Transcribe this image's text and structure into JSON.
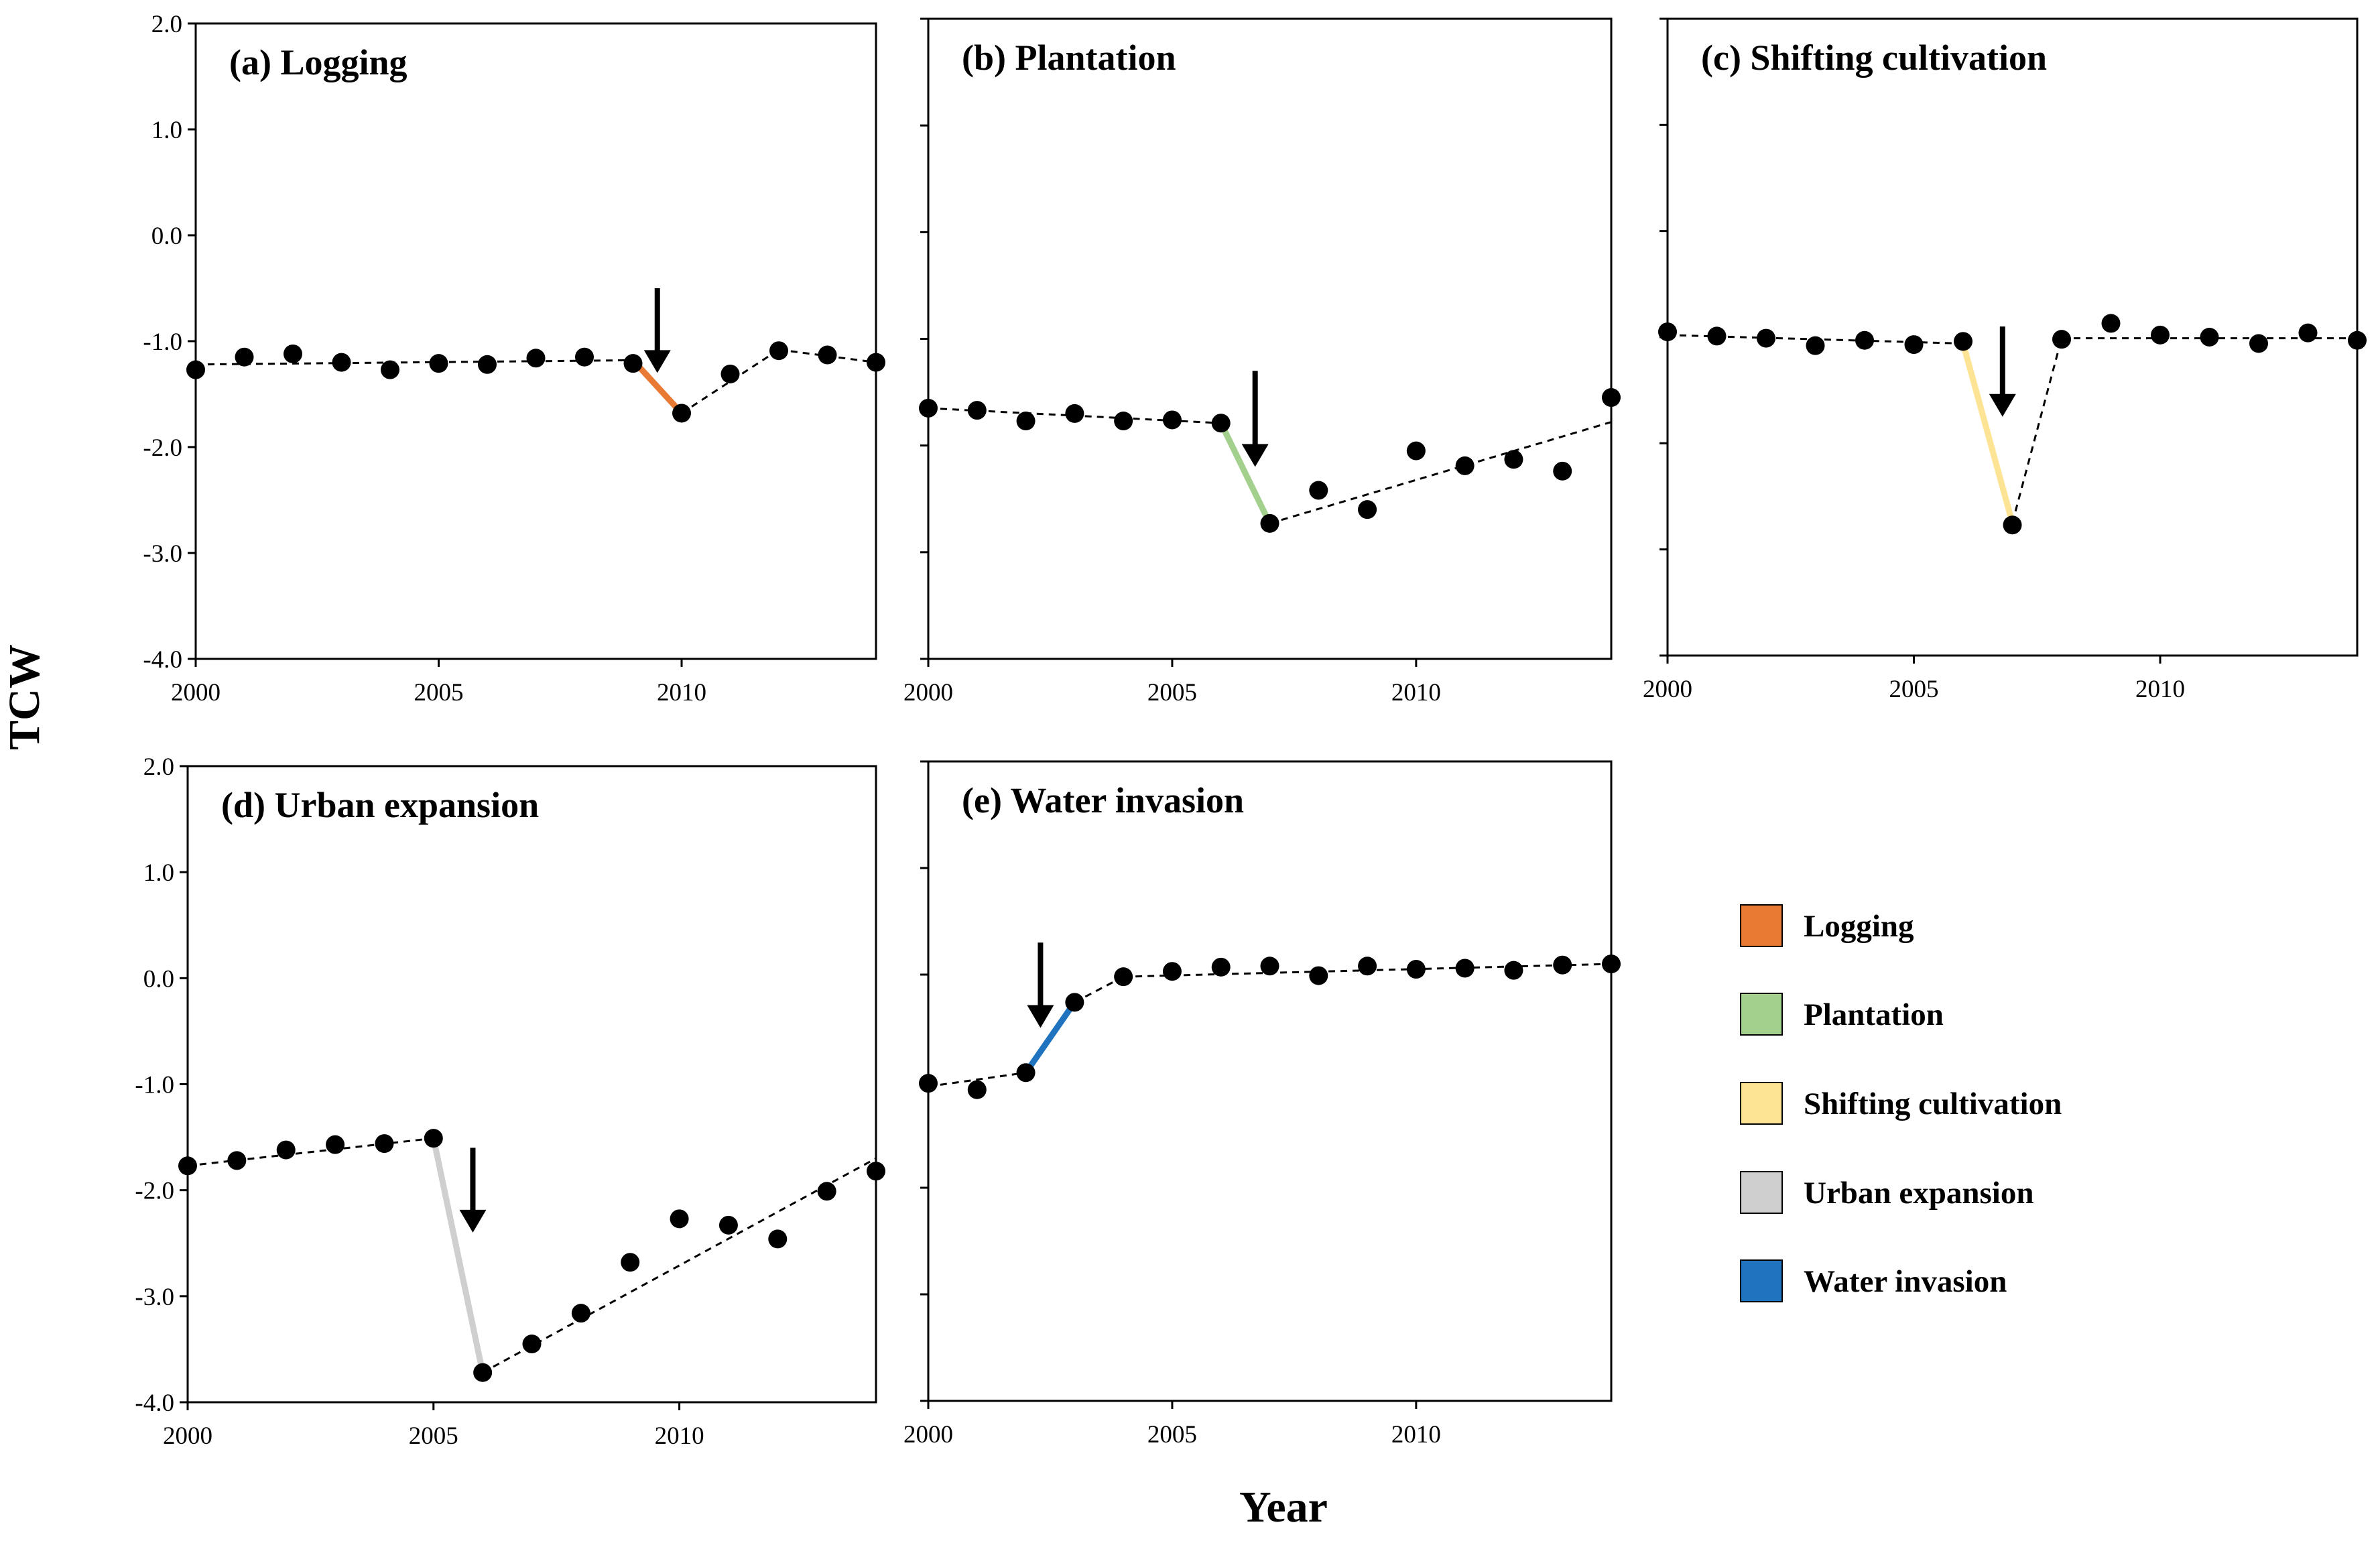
{
  "figure": {
    "ylabel": "TCW",
    "xlabel": "Year"
  },
  "legend": [
    {
      "label": "Logging",
      "color": "#e87a33"
    },
    {
      "label": "Plantation",
      "color": "#a3d08d"
    },
    {
      "label": "Shifting cultivation",
      "color": "#fde494"
    },
    {
      "label": "Urban expansion",
      "color": "#cfcfcf"
    },
    {
      "label": "Water invasion",
      "color": "#1f73bf"
    }
  ],
  "chart_data": [
    {
      "type": "scatter",
      "title": "(a) Logging",
      "xlim": [
        2000,
        2014
      ],
      "ylim": [
        -4.0,
        2.0
      ],
      "xticks": [
        "2000",
        "2005",
        "2010"
      ],
      "yticks": [
        "2.0",
        "1.0",
        "0.0",
        "-1.0",
        "-2.0",
        "-3.0",
        "-4.0"
      ],
      "show_ytick_labels": true,
      "x": [
        2000,
        2001,
        2002,
        2003,
        2004,
        2005,
        2006,
        2007,
        2008,
        2009,
        2010,
        2011,
        2012,
        2013,
        2014
      ],
      "y": [
        -1.27,
        -1.15,
        -1.12,
        -1.2,
        -1.27,
        -1.21,
        -1.22,
        -1.16,
        -1.15,
        -1.21,
        -1.68,
        -1.31,
        -1.09,
        -1.13,
        -1.2
      ],
      "fit": [
        [
          2000,
          -1.22
        ],
        [
          2009,
          -1.18
        ],
        [
          2010,
          -1.68
        ],
        [
          2012,
          -1.08
        ],
        [
          2014,
          -1.2
        ]
      ],
      "disturbance": {
        "type": "Logging",
        "color": "#e87a33",
        "from": [
          2009,
          -1.18
        ],
        "to": [
          2010,
          -1.68
        ]
      },
      "arrow": {
        "x": 2009.5,
        "y_from": -0.5,
        "y_to": -1.3
      }
    },
    {
      "type": "scatter",
      "title": "(b) Plantation",
      "xlim": [
        2000,
        2014
      ],
      "ylim": [
        -4.0,
        2.0
      ],
      "xticks": [
        "2000",
        "2005",
        "2010"
      ],
      "yticks": [],
      "show_ytick_labels": false,
      "x": [
        2000,
        2001,
        2002,
        2003,
        2004,
        2005,
        2006,
        2007,
        2008,
        2009,
        2010,
        2011,
        2012,
        2013,
        2014
      ],
      "y": [
        -1.65,
        -1.67,
        -1.77,
        -1.7,
        -1.77,
        -1.76,
        -1.79,
        -2.73,
        -2.42,
        -2.6,
        -2.05,
        -2.19,
        -2.13,
        -2.24,
        -1.55
      ],
      "fit": [
        [
          2000,
          -1.65
        ],
        [
          2006,
          -1.79
        ],
        [
          2007,
          -2.73
        ],
        [
          2014,
          -1.78
        ]
      ],
      "disturbance": {
        "type": "Plantation",
        "color": "#a3d08d",
        "from": [
          2006,
          -1.79
        ],
        "to": [
          2007,
          -2.73
        ]
      },
      "arrow": {
        "x": 2006.7,
        "y_from": -1.3,
        "y_to": -2.2
      }
    },
    {
      "type": "scatter",
      "title": "(c) Shifting cultivation",
      "xlim": [
        2000,
        2014
      ],
      "ylim": [
        -4.0,
        2.0
      ],
      "xticks": [
        "2000",
        "2005",
        "2010"
      ],
      "yticks": [],
      "show_ytick_labels": false,
      "x": [
        2000,
        2001,
        2002,
        2003,
        2004,
        2005,
        2006,
        2007,
        2008,
        2009,
        2010,
        2011,
        2012,
        2013,
        2014
      ],
      "y": [
        -0.95,
        -0.99,
        -1.01,
        -1.08,
        -1.03,
        -1.07,
        -1.04,
        -2.77,
        -1.02,
        -0.87,
        -0.98,
        -1.0,
        -1.06,
        -0.96,
        -1.03
      ],
      "fit": [
        [
          2000,
          -0.98
        ],
        [
          2006,
          -1.06
        ],
        [
          2007,
          -2.75
        ],
        [
          2008,
          -1.01
        ],
        [
          2014,
          -1.01
        ]
      ],
      "disturbance": {
        "type": "Shifting cultivation",
        "color": "#fde494",
        "from": [
          2006,
          -1.06
        ],
        "to": [
          2007,
          -2.75
        ]
      },
      "arrow": {
        "x": 2006.8,
        "y_from": -0.9,
        "y_to": -1.75
      }
    },
    {
      "type": "scatter",
      "title": "(d) Urban expansion",
      "xlim": [
        2000,
        2014
      ],
      "ylim": [
        -4.0,
        2.0
      ],
      "xticks": [
        "2000",
        "2005",
        "2010"
      ],
      "yticks": [
        "2.0",
        "1.0",
        "0.0",
        "-1.0",
        "-2.0",
        "-3.0",
        "-4.0"
      ],
      "show_ytick_labels": true,
      "x": [
        2000,
        2001,
        2002,
        2003,
        2004,
        2005,
        2006,
        2007,
        2008,
        2009,
        2010,
        2011,
        2012,
        2013,
        2014
      ],
      "y": [
        -1.77,
        -1.72,
        -1.62,
        -1.57,
        -1.56,
        -1.51,
        -3.72,
        -3.45,
        -3.16,
        -2.68,
        -2.27,
        -2.33,
        -2.46,
        -2.01,
        -1.82
      ],
      "fit": [
        [
          2000,
          -1.77
        ],
        [
          2005,
          -1.51
        ],
        [
          2006,
          -3.72
        ],
        [
          2014,
          -1.7
        ]
      ],
      "disturbance": {
        "type": "Urban expansion",
        "color": "#cfcfcf",
        "from": [
          2005,
          -1.51
        ],
        "to": [
          2006,
          -3.72
        ]
      },
      "arrow": {
        "x": 2005.8,
        "y_from": -1.6,
        "y_to": -2.4
      }
    },
    {
      "type": "scatter",
      "title": "(e) Water invasion",
      "xlim": [
        2000,
        2014
      ],
      "ylim": [
        -4.0,
        2.0
      ],
      "xticks": [
        "2000",
        "2005",
        "2010"
      ],
      "yticks": [],
      "show_ytick_labels": false,
      "x": [
        2000,
        2001,
        2002,
        2003,
        2004,
        2005,
        2006,
        2007,
        2008,
        2009,
        2010,
        2011,
        2012,
        2013,
        2014
      ],
      "y": [
        -1.02,
        -1.08,
        -0.92,
        -0.26,
        -0.02,
        0.03,
        0.07,
        0.08,
        -0.01,
        0.08,
        0.05,
        0.06,
        0.04,
        0.09,
        0.1
      ],
      "fit": [
        [
          2000,
          -1.05
        ],
        [
          2002,
          -0.92
        ],
        [
          2003,
          -0.26
        ],
        [
          2004,
          -0.02
        ],
        [
          2014,
          0.1
        ]
      ],
      "disturbance": {
        "type": "Water invasion",
        "color": "#1f73bf",
        "from": [
          2002,
          -0.92
        ],
        "to": [
          2003,
          -0.26
        ]
      },
      "arrow": {
        "x": 2002.3,
        "y_from": 0.3,
        "y_to": -0.5
      }
    }
  ]
}
